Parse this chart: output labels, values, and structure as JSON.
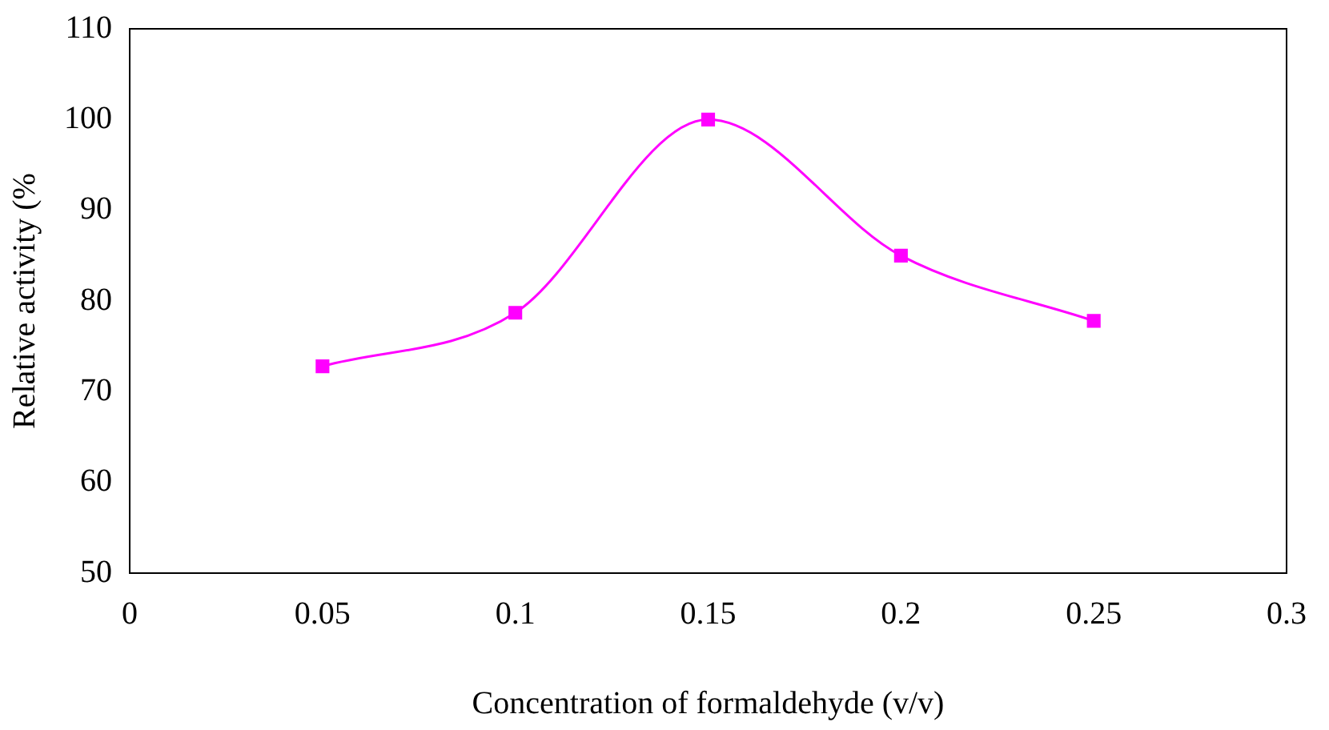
{
  "chart_data": {
    "type": "line",
    "xlabel": "Concentration of formaldehyde (v/v)",
    "ylabel": "Relative activity (%",
    "x": [
      0.05,
      0.1,
      0.15,
      0.2,
      0.25
    ],
    "series": [
      {
        "color": "#ff00ff",
        "values": [
          72.8,
          78.7,
          100,
          85,
          77.8
        ]
      }
    ],
    "xlim": [
      0,
      0.3
    ],
    "xticks": [
      0,
      0.05,
      0.1,
      0.15,
      0.2,
      0.25,
      0.3
    ],
    "ylim": [
      50,
      110
    ],
    "yticks": [
      50,
      60,
      70,
      80,
      90,
      100,
      110
    ],
    "grid": false,
    "legend": false,
    "marker": "square",
    "line_style": "solid"
  }
}
